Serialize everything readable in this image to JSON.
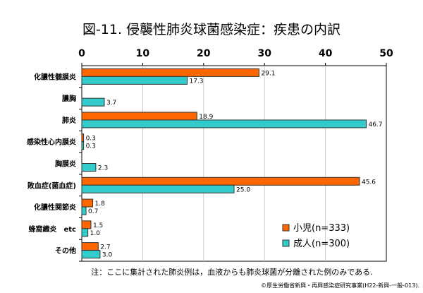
{
  "chart_data": {
    "type": "bar",
    "orientation": "horizontal",
    "title": "図-11. 侵襲性肺炎球菌感染症：疾患の内訳",
    "categories": [
      "化膿性髄膜炎",
      "膿胸",
      "肺炎",
      "感染性心内膜炎",
      "胸膜炎",
      "敗血症(菌血症)",
      "化膿性関節炎",
      "蜂窩織炎　etc",
      "その他"
    ],
    "series": [
      {
        "name": "小児(n=333)",
        "color": "#FF6600",
        "values": [
          29.1,
          null,
          18.9,
          0.3,
          null,
          45.6,
          1.8,
          1.5,
          2.7
        ]
      },
      {
        "name": "成人(n=300)",
        "color": "#33CCCC",
        "values": [
          17.3,
          3.7,
          46.7,
          0.3,
          2.3,
          25.0,
          0.7,
          1.0,
          3.0
        ]
      }
    ],
    "xlim": [
      0,
      50
    ],
    "xticks": [
      0,
      10,
      20,
      30,
      40,
      50
    ],
    "grid": true,
    "legend": "bottom-right",
    "xlabel": "",
    "ylabel": ""
  },
  "notes": {
    "note": "注：ここに集計された肺炎例は，血液からも肺炎球菌が分離された例のみである.",
    "source": "©厚生労働省新興・再興感染症研究事業(H22-新興-一般-013)."
  }
}
